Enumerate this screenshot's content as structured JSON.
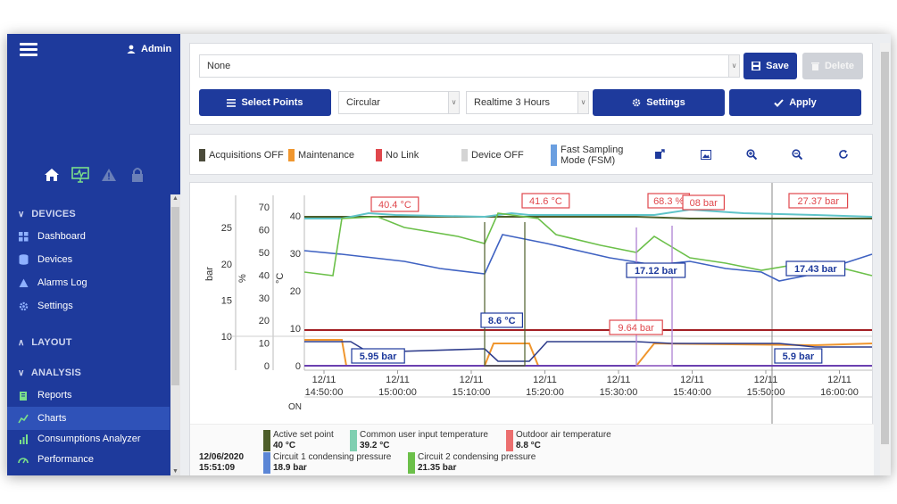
{
  "sidebar": {
    "user_label": "Admin",
    "sections": [
      {
        "label": "DEVICES",
        "items": [
          {
            "label": "Dashboard"
          },
          {
            "label": "Devices"
          },
          {
            "label": "Alarms Log"
          },
          {
            "label": "Settings"
          }
        ]
      },
      {
        "label": "LAYOUT",
        "items": []
      },
      {
        "label": "ANALYSIS",
        "items": [
          {
            "label": "Reports"
          },
          {
            "label": "Charts"
          },
          {
            "label": "Consumptions Analyzer"
          },
          {
            "label": "Performance"
          }
        ]
      }
    ]
  },
  "toolbar": {
    "preset_value": "None",
    "save_label": "Save",
    "delete_label": "Delete",
    "select_points_label": "Select Points",
    "mode_value": "Circular",
    "range_value": "Realtime 3 Hours",
    "settings_label": "Settings",
    "apply_label": "Apply"
  },
  "status_legend": [
    {
      "label": "Acquisitions OFF",
      "color": "#4a4a3a"
    },
    {
      "label": "Maintenance",
      "color": "#f0962e"
    },
    {
      "label": "No Link",
      "color": "#e0474c"
    },
    {
      "label": "Device OFF",
      "color": "#d4d4d4"
    },
    {
      "label": "Fast Sampling Mode (FSM)",
      "color": "#6b9fe0"
    }
  ],
  "chart_data": {
    "type": "line",
    "axes": {
      "bar": {
        "label": "bar",
        "ticks": [
          "10",
          "15",
          "20",
          "25"
        ]
      },
      "percent": {
        "label": "%",
        "ticks": [
          "0",
          "10",
          "20",
          "30",
          "40",
          "50",
          "60",
          "70"
        ]
      },
      "celsius": {
        "label": "°C",
        "ticks": [
          "0",
          "10",
          "20",
          "30",
          "40"
        ]
      }
    },
    "x_ticks": [
      {
        "date": "12/11",
        "time": "14:50:00"
      },
      {
        "date": "12/11",
        "time": "15:00:00"
      },
      {
        "date": "12/11",
        "time": "15:10:00"
      },
      {
        "date": "12/11",
        "time": "15:20:00"
      },
      {
        "date": "12/11",
        "time": "15:30:00"
      },
      {
        "date": "12/11",
        "time": "15:40:00"
      },
      {
        "date": "12/11",
        "time": "15:50:00"
      },
      {
        "date": "12/11",
        "time": "16:00:00"
      }
    ],
    "on_label": "ON",
    "annotations": [
      {
        "text": "40.4 °C",
        "color": "#e0474c"
      },
      {
        "text": "41.6 °C",
        "color": "#e0474c"
      },
      {
        "text": "68.3 %",
        "color": "#e0474c"
      },
      {
        "text": "08 bar",
        "color": "#e0474c"
      },
      {
        "text": "27.37 bar",
        "color": "#e0474c"
      },
      {
        "text": "17.12 bar",
        "color": "#1e3a9c"
      },
      {
        "text": "17.43 bar",
        "color": "#1e3a9c"
      },
      {
        "text": "8.6 °C",
        "color": "#1e3a9c"
      },
      {
        "text": "9.64 bar",
        "color": "#e0474c"
      },
      {
        "text": "5.95 bar",
        "color": "#1e3a9c"
      },
      {
        "text": "5.9 bar",
        "color": "#1e3a9c"
      }
    ],
    "series": [
      {
        "name": "Active set point",
        "value": "40 °C",
        "color": "#4d5e2a"
      },
      {
        "name": "Common user input temperature",
        "value": "39.2 °C",
        "color": "#7fcfb1"
      },
      {
        "name": "Outdoor air temperature",
        "value": "8.8 °C",
        "color": "#ec6f6f"
      },
      {
        "name": "Circuit 1 condensing pressure",
        "value": "18.9 bar",
        "color": "#5b86d6"
      },
      {
        "name": "Circuit 2 condensing pressure",
        "value": "21.35 bar",
        "color": "#6cc04a"
      }
    ],
    "cursor_time": {
      "date": "12/06/2020",
      "time": "15:51:09"
    }
  }
}
